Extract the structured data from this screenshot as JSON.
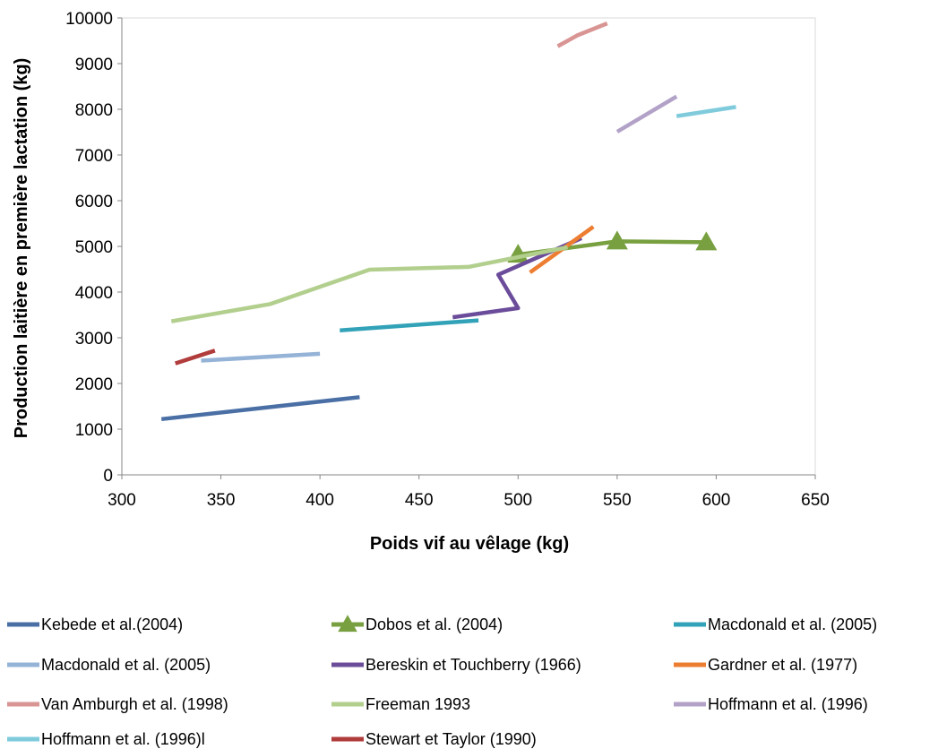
{
  "chart_data": {
    "type": "line",
    "title": "",
    "xlabel": "Poids vif au vêlage (kg)",
    "ylabel": "Production laitière en première lactation (kg)",
    "xlim": [
      300,
      650
    ],
    "ylim": [
      0,
      10000
    ],
    "x_ticks": [
      300,
      350,
      400,
      450,
      500,
      550,
      600,
      650
    ],
    "y_ticks": [
      0,
      1000,
      2000,
      3000,
      4000,
      5000,
      6000,
      7000,
      8000,
      9000,
      10000
    ],
    "grid": false,
    "legend_position": "bottom",
    "series": [
      {
        "name": "Kebede et al.(2004)",
        "color": "#4a6fa5",
        "marker": "none",
        "points": [
          [
            320,
            1220
          ],
          [
            420,
            1700
          ]
        ]
      },
      {
        "name": "Dobos et al. (2004)",
        "color": "#78a040",
        "marker": "triangle",
        "points": [
          [
            500,
            4820
          ],
          [
            550,
            5110
          ],
          [
            595,
            5090
          ]
        ]
      },
      {
        "name": "Macdonald et al. (2005)",
        "color": "#31a2b8",
        "marker": "none",
        "points": [
          [
            410,
            3160
          ],
          [
            480,
            3380
          ]
        ]
      },
      {
        "name": "Macdonald et al. (2005)",
        "color": "#95b3d7",
        "marker": "none",
        "points": [
          [
            340,
            2500
          ],
          [
            400,
            2650
          ]
        ]
      },
      {
        "name": "Bereskin et Touchberry (1966)",
        "color": "#6b4c9a",
        "marker": "none",
        "points": [
          [
            467,
            3450
          ],
          [
            500,
            3650
          ],
          [
            490,
            4380
          ],
          [
            532,
            5180
          ]
        ]
      },
      {
        "name": "Gardner et al. (1977)",
        "color": "#ed7d31",
        "marker": "none",
        "points": [
          [
            506,
            4430
          ],
          [
            538,
            5430
          ]
        ]
      },
      {
        "name": "Van Amburgh et al. (1998)",
        "color": "#d99594",
        "marker": "none",
        "points": [
          [
            520,
            9380
          ],
          [
            530,
            9620
          ],
          [
            545,
            9880
          ]
        ]
      },
      {
        "name": "Freeman 1993",
        "color": "#b2cf8e",
        "marker": "none",
        "points": [
          [
            325,
            3360
          ],
          [
            375,
            3740
          ],
          [
            425,
            4490
          ],
          [
            475,
            4550
          ],
          [
            525,
            4980
          ]
        ]
      },
      {
        "name": "Hoffmann et al. (1996)",
        "color": "#b3a2c7",
        "marker": "none",
        "points": [
          [
            550,
            7510
          ],
          [
            580,
            8280
          ]
        ]
      },
      {
        "name": "Hoffmann et al. (1996)l",
        "color": "#7fcbdc",
        "marker": "none",
        "points": [
          [
            580,
            7850
          ],
          [
            610,
            8050
          ]
        ]
      },
      {
        "name": "Stewart et Taylor (1990)",
        "color": "#b13c3c",
        "marker": "none",
        "points": [
          [
            327,
            2440
          ],
          [
            347,
            2720
          ]
        ]
      }
    ]
  }
}
